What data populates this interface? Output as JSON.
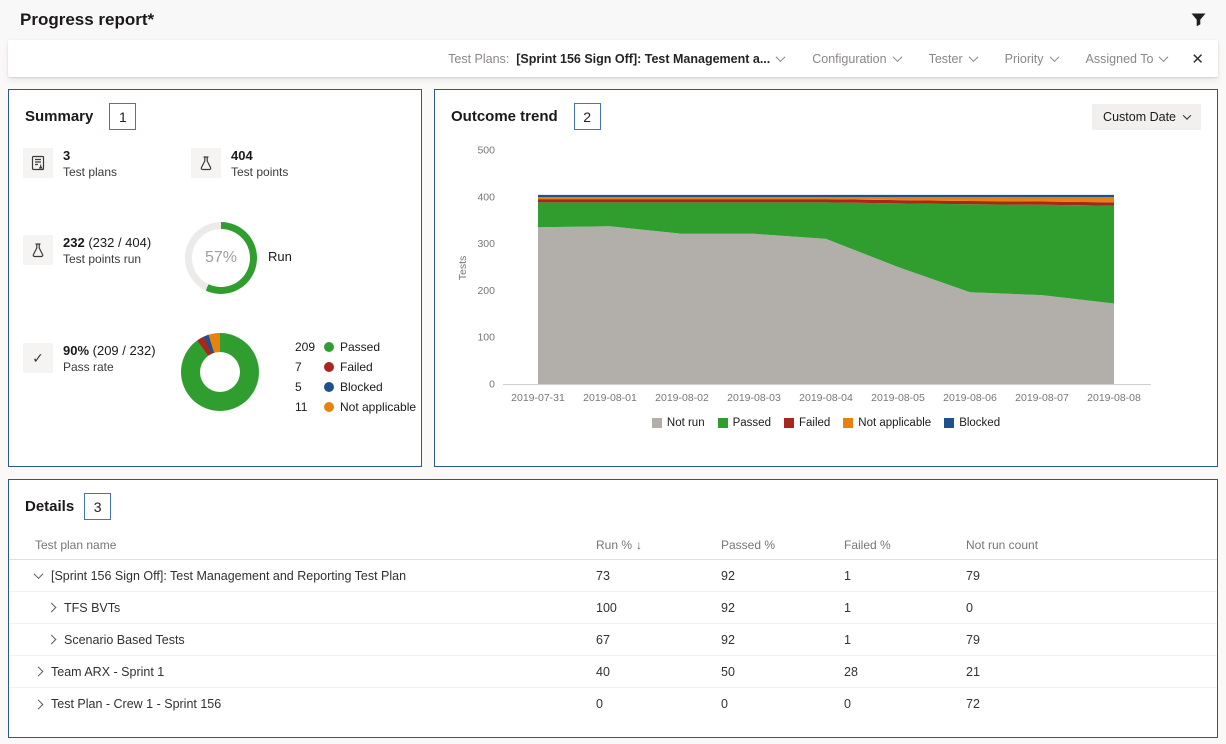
{
  "page": {
    "title": "Progress report*"
  },
  "icons": {
    "close": "✕",
    "sort_desc": "↓",
    "check": "✓"
  },
  "colors": {
    "accent_border": "#2b5797",
    "badge_border": "#4472c4",
    "not_run": "#b2afab",
    "passed": "#2f9e2f",
    "failed": "#a8261d",
    "blocked": "#1f5190",
    "not_applicable": "#e8820d"
  },
  "filter_bar": {
    "primary_label": "Test Plans:",
    "primary_value": "[Sprint 156 Sign Off]: Test Management a...",
    "dropdowns": [
      "Configuration",
      "Tester",
      "Priority",
      "Assigned To"
    ]
  },
  "summary": {
    "title": "Summary",
    "badge": "1",
    "stats": [
      {
        "icon": "test-plan",
        "value": "3",
        "suffix": "",
        "label": "Test plans"
      },
      {
        "icon": "flask",
        "value": "404",
        "suffix": "",
        "label": "Test points"
      },
      {
        "icon": "flask",
        "value": "232",
        "suffix": " (232 / 404)",
        "label": "Test points run"
      },
      {
        "icon": "check",
        "value": "90%",
        "suffix": " (209 / 232)",
        "label": "Pass rate"
      }
    ],
    "run_ring": {
      "percent": 57,
      "center_text": "57%",
      "label": "Run",
      "color": "#2f9e2f",
      "track_color": "#ecebea"
    },
    "outcome_donut": {
      "slices": [
        {
          "count": "209",
          "label": "Passed",
          "color": "#2f9e2f"
        },
        {
          "count": "7",
          "label": "Failed",
          "color": "#a8261d"
        },
        {
          "count": "5",
          "label": "Blocked",
          "color": "#1f5190"
        },
        {
          "count": "11",
          "label": "Not applicable",
          "color": "#e8820d"
        }
      ]
    }
  },
  "outcome_trend": {
    "title": "Outcome trend",
    "badge": "2",
    "date_button": "Custom Date"
  },
  "chart_data": [
    {
      "type": "area",
      "stacked": true,
      "title": "Outcome trend",
      "x": [
        "2019-07-31",
        "2019-08-01",
        "2019-08-02",
        "2019-08-03",
        "2019-08-04",
        "2019-08-05",
        "2019-08-06",
        "2019-08-07",
        "2019-08-08"
      ],
      "series": [
        {
          "name": "Not run",
          "color": "#b2afab",
          "values": [
            335,
            337,
            321,
            321,
            310,
            250,
            196,
            190,
            172
          ]
        },
        {
          "name": "Passed",
          "color": "#2f9e2f",
          "values": [
            53,
            51,
            67,
            67,
            78,
            136,
            188,
            193,
            209
          ]
        },
        {
          "name": "Failed",
          "color": "#a8261d",
          "values": [
            7,
            7,
            7,
            7,
            7,
            7,
            7,
            7,
            7
          ]
        },
        {
          "name": "Not applicable",
          "color": "#e8820d",
          "values": [
            4,
            4,
            4,
            4,
            4,
            6,
            8,
            9,
            11
          ]
        },
        {
          "name": "Blocked",
          "color": "#1f5190",
          "values": [
            5,
            5,
            5,
            5,
            5,
            5,
            5,
            5,
            5
          ]
        }
      ],
      "xlabel": "",
      "ylabel": "Tests",
      "ylim": [
        0,
        500
      ],
      "yticks": [
        0,
        100,
        200,
        300,
        400,
        500
      ],
      "legend": [
        "Not run",
        "Passed",
        "Failed",
        "Not applicable",
        "Blocked"
      ],
      "legend_position": "bottom",
      "grid": false
    },
    {
      "type": "pie",
      "subtype": "donut",
      "title": "Run",
      "center_text": "57%",
      "values": [
        {
          "label": "Run",
          "value": 57
        },
        {
          "label": "Remaining",
          "value": 43
        }
      ]
    },
    {
      "type": "pie",
      "subtype": "donut",
      "title": "Test point outcomes",
      "values": [
        {
          "label": "Passed",
          "value": 209
        },
        {
          "label": "Failed",
          "value": 7
        },
        {
          "label": "Blocked",
          "value": 5
        },
        {
          "label": "Not applicable",
          "value": 11
        }
      ]
    }
  ],
  "details": {
    "title": "Details",
    "badge": "3",
    "columns": [
      "Test plan name",
      "Run %",
      "Passed %",
      "Failed %",
      "Not run count"
    ],
    "sorted_column": "Run %",
    "sort_direction": "desc",
    "rows": [
      {
        "name": "[Sprint 156 Sign Off]: Test Management and Reporting Test Plan",
        "level": 0,
        "expanded": true,
        "run_pct": "73",
        "passed_pct": "92",
        "failed_pct": "1",
        "not_run": "79"
      },
      {
        "name": "TFS BVTs",
        "level": 1,
        "expanded": false,
        "run_pct": "100",
        "passed_pct": "92",
        "failed_pct": "1",
        "not_run": "0"
      },
      {
        "name": "Scenario Based Tests",
        "level": 1,
        "expanded": false,
        "run_pct": "67",
        "passed_pct": "92",
        "failed_pct": "1",
        "not_run": "79"
      },
      {
        "name": "Team ARX - Sprint 1",
        "level": 0,
        "expanded": false,
        "run_pct": "40",
        "passed_pct": "50",
        "failed_pct": "28",
        "not_run": "21"
      },
      {
        "name": "Test Plan - Crew 1 - Sprint 156",
        "level": 0,
        "expanded": false,
        "run_pct": "0",
        "passed_pct": "0",
        "failed_pct": "0",
        "not_run": "72"
      }
    ]
  }
}
